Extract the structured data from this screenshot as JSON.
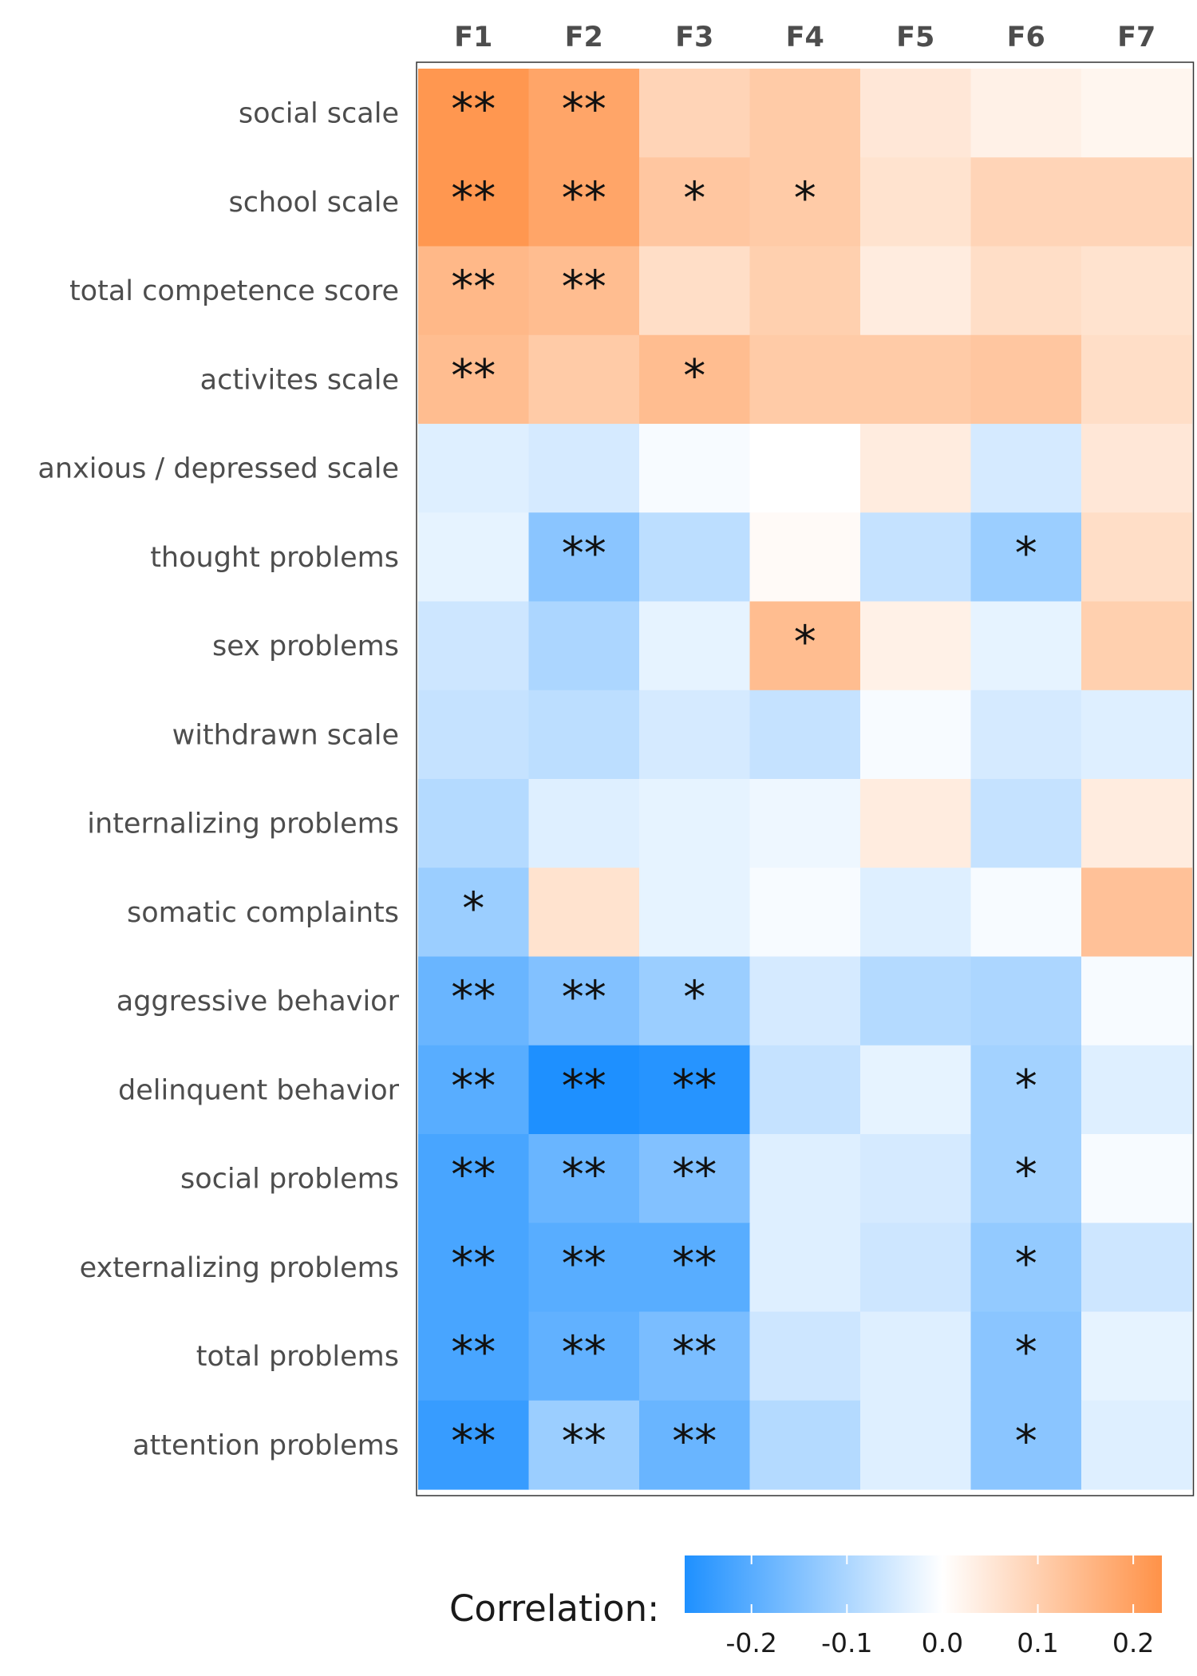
{
  "chart_data": {
    "type": "heatmap",
    "columns": [
      "F1",
      "F2",
      "F3",
      "F4",
      "F5",
      "F6",
      "F7"
    ],
    "rows": [
      "social scale",
      "school scale",
      "total competence score",
      "activites scale",
      "anxious / depressed scale",
      "thought problems",
      "sex problems",
      "withdrawn scale",
      "internalizing problems",
      "somatic complaints",
      "aggressive behavior",
      "delinquent behavior",
      "social problems",
      "externalizing problems",
      "total problems",
      "attention problems"
    ],
    "values": [
      [
        0.22,
        0.19,
        0.09,
        0.11,
        0.05,
        0.03,
        0.02
      ],
      [
        0.22,
        0.19,
        0.12,
        0.11,
        0.06,
        0.09,
        0.09
      ],
      [
        0.15,
        0.14,
        0.07,
        0.1,
        0.04,
        0.07,
        0.06
      ],
      [
        0.14,
        0.11,
        0.14,
        0.11,
        0.11,
        0.12,
        0.07
      ],
      [
        -0.04,
        -0.05,
        -0.01,
        0.0,
        0.04,
        -0.05,
        0.05
      ],
      [
        -0.03,
        -0.14,
        -0.08,
        0.01,
        -0.07,
        -0.12,
        0.07
      ],
      [
        -0.06,
        -0.1,
        -0.03,
        0.14,
        0.03,
        -0.03,
        0.1
      ],
      [
        -0.07,
        -0.08,
        -0.05,
        -0.07,
        -0.01,
        -0.05,
        -0.04
      ],
      [
        -0.09,
        -0.04,
        -0.03,
        -0.02,
        0.04,
        -0.07,
        0.04
      ],
      [
        -0.12,
        0.06,
        -0.03,
        -0.01,
        -0.04,
        -0.01,
        0.13
      ],
      [
        -0.18,
        -0.15,
        -0.12,
        -0.05,
        -0.09,
        -0.1,
        -0.01
      ],
      [
        -0.2,
        -0.27,
        -0.26,
        -0.07,
        -0.03,
        -0.11,
        -0.04
      ],
      [
        -0.22,
        -0.18,
        -0.15,
        -0.04,
        -0.05,
        -0.11,
        -0.01
      ],
      [
        -0.22,
        -0.2,
        -0.2,
        -0.04,
        -0.06,
        -0.13,
        -0.06
      ],
      [
        -0.22,
        -0.19,
        -0.16,
        -0.06,
        -0.04,
        -0.14,
        -0.03
      ],
      [
        -0.24,
        -0.12,
        -0.18,
        -0.09,
        -0.04,
        -0.14,
        -0.04
      ]
    ],
    "significance": [
      [
        "**",
        "**",
        "",
        "",
        "",
        "",
        ""
      ],
      [
        "**",
        "**",
        "*",
        "*",
        "",
        "",
        ""
      ],
      [
        "**",
        "**",
        "",
        "",
        "",
        "",
        ""
      ],
      [
        "**",
        "",
        "*",
        "",
        "",
        "",
        ""
      ],
      [
        "",
        "",
        "",
        "",
        "",
        "",
        ""
      ],
      [
        "",
        "**",
        "",
        "",
        "",
        "*",
        ""
      ],
      [
        "",
        "",
        "",
        "*",
        "",
        "",
        ""
      ],
      [
        "",
        "",
        "",
        "",
        "",
        "",
        ""
      ],
      [
        "",
        "",
        "",
        "",
        "",
        "",
        ""
      ],
      [
        "*",
        "",
        "",
        "",
        "",
        "",
        ""
      ],
      [
        "**",
        "**",
        "*",
        "",
        "",
        "",
        ""
      ],
      [
        "**",
        "**",
        "**",
        "",
        "",
        "*",
        ""
      ],
      [
        "**",
        "**",
        "**",
        "",
        "",
        "*",
        ""
      ],
      [
        "**",
        "**",
        "**",
        "",
        "",
        "*",
        ""
      ],
      [
        "**",
        "**",
        "**",
        "",
        "",
        "*",
        ""
      ],
      [
        "**",
        "**",
        "**",
        "",
        "",
        "*",
        ""
      ]
    ],
    "color_scale": {
      "low": "#1e90ff",
      "mid": "#ffffff",
      "high": "#ff9248",
      "limits": [
        -0.27,
        0.23
      ]
    },
    "legend": {
      "title": "Correlation:",
      "ticks": [
        -0.2,
        -0.1,
        0.0,
        0.1,
        0.2
      ],
      "tick_labels": [
        "-0.2",
        "-0.1",
        "0.0",
        "0.1",
        "0.2"
      ],
      "placement": "bottom"
    }
  }
}
